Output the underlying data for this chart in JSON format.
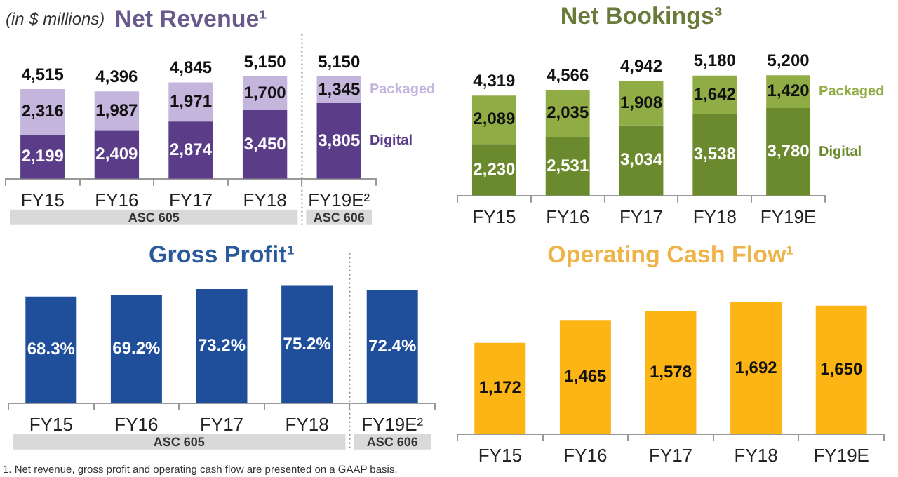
{
  "chart_data": [
    {
      "type": "bar",
      "title": "Net Revenue¹",
      "ylabel": "(in $ millions)",
      "categories": [
        "FY15",
        "FY16",
        "FY17",
        "FY18",
        "FY19E²"
      ],
      "stacked": true,
      "tick_labels": "x",
      "grid": false,
      "legend": false,
      "series": [
        {
          "name": "Digital",
          "color": "#5b3c88",
          "values": [
            2199,
            2409,
            2874,
            3450,
            3805
          ],
          "value_labels": [
            "2,199",
            "2,409",
            "2,874",
            "3,450",
            "3,805"
          ]
        },
        {
          "name": "Packaged",
          "color": "#c4b5dc",
          "values": [
            2316,
            1987,
            1971,
            1700,
            1345
          ],
          "value_labels": [
            "2,316",
            "1,987",
            "1,971",
            "1,700",
            "1,345"
          ]
        }
      ],
      "totals": [
        "4,515",
        "4,396",
        "4,845",
        "5,150",
        "5,150"
      ],
      "annotations": [
        "ASC 605",
        "ASC 606"
      ]
    },
    {
      "type": "bar",
      "title": "Net Bookings³",
      "categories": [
        "FY15",
        "FY16",
        "FY17",
        "FY18",
        "FY19E"
      ],
      "stacked": true,
      "tick_labels": "x",
      "grid": false,
      "legend": false,
      "series": [
        {
          "name": "Digital",
          "color": "#6b8a2e",
          "values": [
            2230,
            2531,
            3034,
            3538,
            3780
          ],
          "value_labels": [
            "2,230",
            "2,531",
            "3,034",
            "3,538",
            "3,780"
          ]
        },
        {
          "name": "Packaged",
          "color": "#8fac45",
          "values": [
            2089,
            2035,
            1908,
            1642,
            1420
          ],
          "value_labels": [
            "2,089",
            "2,035",
            "1,908",
            "1,642",
            "1,420"
          ]
        }
      ],
      "totals": [
        "4,319",
        "4,566",
        "4,942",
        "5,180",
        "5,200"
      ]
    },
    {
      "type": "bar",
      "title": "Gross Profit¹",
      "categories": [
        "FY15",
        "FY16",
        "FY17",
        "FY18",
        "FY19E²"
      ],
      "tick_labels": "x",
      "grid": false,
      "legend": false,
      "values": [
        68.3,
        69.2,
        73.2,
        75.2,
        72.4
      ],
      "color": "#1f4e9a",
      "value_labels": [
        "68.3%",
        "69.2%",
        "73.2%",
        "75.2%",
        "72.4%"
      ],
      "annotations": [
        "ASC 605",
        "ASC 606",
        "1. Net revenue, gross profit and operating cash flow are presented on a GAAP basis."
      ]
    },
    {
      "type": "bar",
      "title": "Operating Cash Flow¹",
      "categories": [
        "FY15",
        "FY16",
        "FY17",
        "FY18",
        "FY19E"
      ],
      "tick_labels": "x",
      "grid": false,
      "legend": false,
      "values": [
        1172,
        1465,
        1578,
        1692,
        1650
      ],
      "color": "#fdb515",
      "value_labels": [
        "1,172",
        "1,465",
        "1,578",
        "1,692",
        "1,650"
      ]
    }
  ]
}
